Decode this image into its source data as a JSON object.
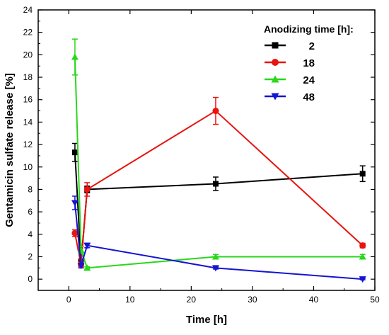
{
  "chart_data": {
    "type": "line",
    "xlabel": "Time [h]",
    "ylabel": "Gentamicin sulfate release [%]",
    "xlim": [
      -5,
      50
    ],
    "ylim": [
      -1,
      24
    ],
    "xticks": [
      0,
      10,
      20,
      30,
      40,
      50
    ],
    "yticks": [
      0,
      2,
      4,
      6,
      8,
      10,
      12,
      14,
      16,
      18,
      20,
      22,
      24
    ],
    "legend_title": "Anodizing time [h]:",
    "legend_position": "top-right",
    "grid": false,
    "series": [
      {
        "name": "2",
        "color": "#000000",
        "marker": "square",
        "x": [
          1,
          2,
          3,
          24,
          48
        ],
        "y": [
          11.3,
          1.5,
          8.0,
          8.5,
          9.4
        ],
        "err": [
          0.8,
          0.3,
          0.3,
          0.6,
          0.7
        ]
      },
      {
        "name": "18",
        "color": "#e8140f",
        "marker": "circle",
        "x": [
          1,
          2,
          3,
          24,
          48
        ],
        "y": [
          4.1,
          1.3,
          8.0,
          15.0,
          3.0
        ],
        "err": [
          0.3,
          0.2,
          0.6,
          1.2,
          0.2
        ]
      },
      {
        "name": "24",
        "color": "#29d71b",
        "marker": "triangle-up",
        "x": [
          1,
          2,
          3,
          24,
          48
        ],
        "y": [
          19.8,
          2.6,
          1.0,
          2.0,
          2.0
        ],
        "err": [
          1.6,
          0.3,
          0.1,
          0.2,
          0.2
        ]
      },
      {
        "name": "48",
        "color": "#1414d2",
        "marker": "triangle-down",
        "x": [
          1,
          2,
          3,
          24,
          48
        ],
        "y": [
          6.8,
          1.2,
          3.0,
          1.0,
          0.0
        ],
        "err": [
          0.6,
          0.2,
          0.2,
          0.1,
          0.05
        ]
      }
    ]
  }
}
